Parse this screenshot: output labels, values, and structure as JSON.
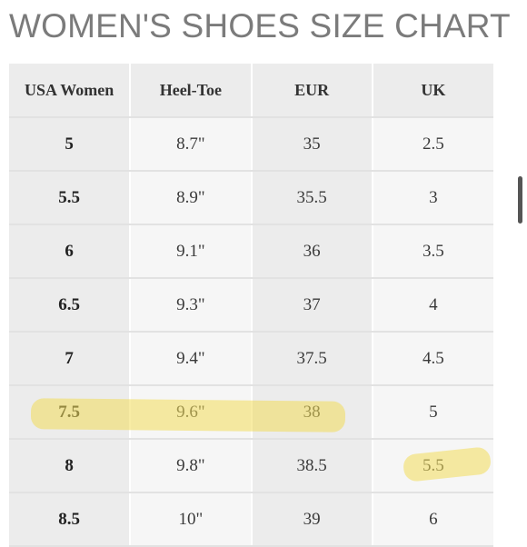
{
  "title": "WOMEN'S SHOES SIZE CHART",
  "table": {
    "headers": [
      "USA Women",
      "Heel-Toe",
      "EUR",
      "UK"
    ],
    "rows": [
      [
        "5",
        "8.7\"",
        "35",
        "2.5"
      ],
      [
        "5.5",
        "8.9\"",
        "35.5",
        "3"
      ],
      [
        "6",
        "9.1\"",
        "36",
        "3.5"
      ],
      [
        "6.5",
        "9.3\"",
        "37",
        "4"
      ],
      [
        "7",
        "9.4\"",
        "37.5",
        "4.5"
      ],
      [
        "7.5",
        "9.6\"",
        "38",
        "5"
      ],
      [
        "8",
        "9.8\"",
        "38.5",
        "5.5"
      ],
      [
        "8.5",
        "10\"",
        "39",
        "6"
      ]
    ]
  },
  "highlight_color": "#f3dd5a"
}
